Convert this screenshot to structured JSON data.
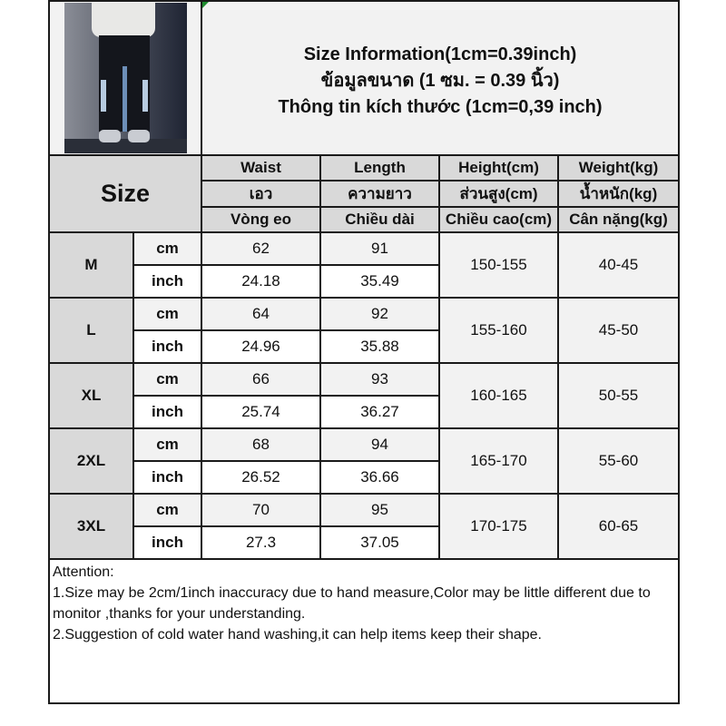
{
  "title_lines": [
    "Size Information(1cm=0.39inch)",
    "ข้อมูลขนาด (1 ซม. = 0.39 นิ้ว)",
    "Thông tin kích thước (1cm=0,39 inch)"
  ],
  "size_header": "Size",
  "columns": [
    {
      "en": "Waist",
      "th": "เอว",
      "vi": "Vòng eo"
    },
    {
      "en": "Length",
      "th": "ความยาว",
      "vi": "Chiều dài"
    },
    {
      "en": "Height(cm)",
      "th": "ส่วนสูง(cm)",
      "vi": "Chiều cao(cm)"
    },
    {
      "en": "Weight(kg)",
      "th": "น้ำหนัก(kg)",
      "vi": "Cân nặng(kg)"
    }
  ],
  "units": {
    "cm": "cm",
    "inch": "inch"
  },
  "sizes": [
    {
      "size": "M",
      "cm": {
        "waist": "62",
        "length": "91"
      },
      "inch": {
        "waist": "24.18",
        "length": "35.49"
      },
      "height": "150-155",
      "weight": "40-45"
    },
    {
      "size": "L",
      "cm": {
        "waist": "64",
        "length": "92"
      },
      "inch": {
        "waist": "24.96",
        "length": "35.88"
      },
      "height": "155-160",
      "weight": "45-50"
    },
    {
      "size": "XL",
      "cm": {
        "waist": "66",
        "length": "93"
      },
      "inch": {
        "waist": "25.74",
        "length": "36.27"
      },
      "height": "160-165",
      "weight": "50-55"
    },
    {
      "size": "2XL",
      "cm": {
        "waist": "68",
        "length": "94"
      },
      "inch": {
        "waist": "26.52",
        "length": "36.66"
      },
      "height": "165-170",
      "weight": "55-60"
    },
    {
      "size": "3XL",
      "cm": {
        "waist": "70",
        "length": "95"
      },
      "inch": {
        "waist": "27.3",
        "length": "37.05"
      },
      "height": "170-175",
      "weight": "60-65"
    }
  ],
  "attention": {
    "heading": "Attention:",
    "notes": [
      "1.Size may be 2cm/1inch inaccuracy due to hand measure,Color may be little different due to monitor ,thanks for your understanding.",
      "2.Suggestion of cold water hand washing,it can help items keep their shape."
    ]
  },
  "colors": {
    "header_gray": "#d9d9d9",
    "light_gray": "#f2f2f2",
    "border": "#1a1a1a"
  }
}
